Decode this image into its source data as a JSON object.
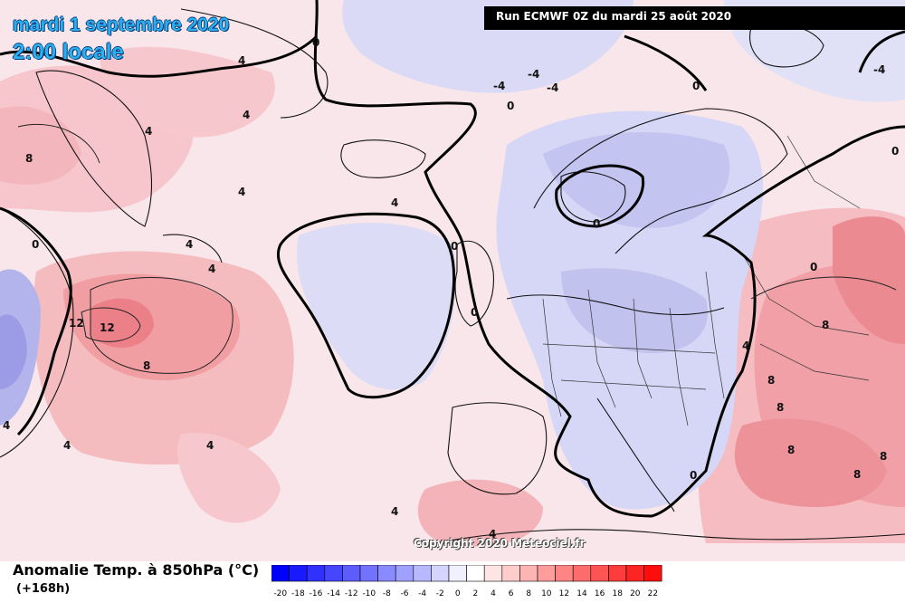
{
  "header": {
    "date": "mardi 1 septembre 2020",
    "time": "2:00 locale",
    "run": "Run ECMWF 0Z du mardi 25 août 2020"
  },
  "copyright": "Copyright 2020 Meteociel.fr",
  "legend": {
    "title": "Anomalie Temp. à 850hPa (°C)",
    "subtitle": "(+168h)",
    "ticks": [
      "-20",
      "-18",
      "-16",
      "-14",
      "-12",
      "-10",
      "-8",
      "-6",
      "-4",
      "-2",
      "0",
      "2",
      "4",
      "6",
      "8",
      "10",
      "12",
      "14",
      "16",
      "18",
      "20",
      "22"
    ],
    "colors": [
      "#0000ff",
      "#1a1aff",
      "#3030ff",
      "#4646ff",
      "#5c5cff",
      "#7272ff",
      "#8a8aff",
      "#a0a0ff",
      "#b8b8ff",
      "#d4d4ff",
      "#f0f0ff",
      "#ffffff",
      "#ffe4e4",
      "#ffcccc",
      "#ffb4b4",
      "#ff9c9c",
      "#ff8484",
      "#ff6c6c",
      "#ff5454",
      "#ff3c3c",
      "#ff2424",
      "#ff0c0c"
    ]
  },
  "contour_labels": [
    "0",
    "0",
    "0",
    "0",
    "0",
    "0",
    "0",
    "0",
    "0",
    "0",
    "4",
    "4",
    "4",
    "4",
    "4",
    "4",
    "4",
    "4",
    "4",
    "4",
    "4",
    "4",
    "4",
    "-4",
    "-4",
    "-4",
    "-4",
    "8",
    "8",
    "8",
    "8",
    "8",
    "8",
    "8",
    "8",
    "12",
    "12"
  ],
  "colors": {
    "warm_anomaly": "#f4a4a4",
    "cold_anomaly": "#c8c8f4",
    "neutral": "#f6ecf0"
  }
}
